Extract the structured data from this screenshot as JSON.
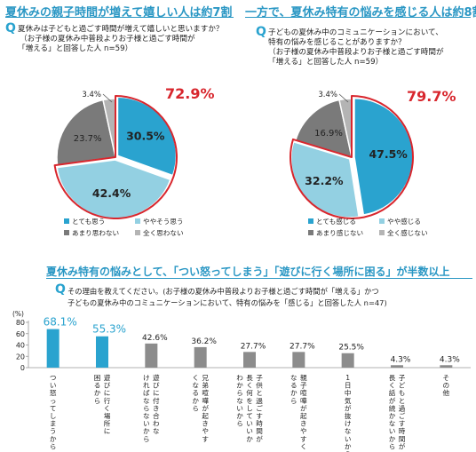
{
  "colors": {
    "very": "#2aa3cf",
    "somewhat": "#93d0e2",
    "notreally": "#7a7a7a",
    "notatall": "#b4b4b4",
    "accent": "#2a97c4",
    "highlight": "#d8262d"
  },
  "left": {
    "header": "夏休みの親子時間が増えて嬉しい人は約7割",
    "q_mark": "Q",
    "q_lines": [
      "夏休みは子どもと過ごす時間が増えて嬉しいと思いますか？",
      "（お子様の夏休み中普段よりお子様と過ごす時間が",
      "「増える」と回答した人  n=59）"
    ],
    "highlight": "72.9%",
    "legend": [
      "とても思う",
      "ややそう思う",
      "あまり思わない",
      "全く思わない"
    ]
  },
  "right": {
    "header": "一方で、夏休み特有の悩みを感じる人は約8割",
    "q_mark": "Q",
    "q_lines": [
      "子どもの夏休み中のコミュニケーションにおいて、",
      "特有の悩みを感じることがありますか？",
      "（お子様の夏休み中普段よりお子様と過ごす時間が",
      "「増える」と回答した人   n=59）"
    ],
    "highlight": "79.7%",
    "legend": [
      "とても感じる",
      "やや感じる",
      "あまり感じない",
      "全く感じない"
    ]
  },
  "bottom": {
    "header": "夏休み特有の悩みとして、「つい怒ってしまう」「遊びに行く場所に困る」が半数以上",
    "q_mark": "Q",
    "q_lines": [
      "その理由を教えてください。(お子様の夏休み中普段よりお子様と過ごす時間が「増える」かつ",
      "子どもの夏休み中のコミュニケーションにおいて、特有の悩みを「感じる」と回答した人 n=47)"
    ]
  },
  "chart_data": [
    {
      "type": "pie",
      "slices": [
        {
          "label": "とても思う",
          "value": 30.5,
          "label_text": "30.5%"
        },
        {
          "label": "ややそう思う",
          "value": 42.4,
          "label_text": "42.4%"
        },
        {
          "label": "あまり思わない",
          "value": 23.7,
          "label_text": "23.7%"
        },
        {
          "label": "全く思わない",
          "value": 3.4,
          "label_text": "3.4%"
        }
      ],
      "legend": "bottom"
    },
    {
      "type": "pie",
      "slices": [
        {
          "label": "とても感じる",
          "value": 47.5,
          "label_text": "47.5%"
        },
        {
          "label": "やや感じる",
          "value": 32.2,
          "label_text": "32.2%"
        },
        {
          "label": "あまり感じない",
          "value": 16.9,
          "label_text": "16.9%"
        },
        {
          "label": "全く感じない",
          "value": 3.4,
          "label_text": "3.4%"
        }
      ],
      "legend": "bottom"
    },
    {
      "type": "bar",
      "ylabel": "(%)",
      "ylim": [
        0,
        80
      ],
      "yticks": [
        0,
        20,
        40,
        60,
        80
      ],
      "grid": false,
      "categories": [
        "つい怒ってしまうから",
        "遊びに行く場所に困るから",
        "遊びに付き合わなければならないから",
        "兄弟喧嘩が起きやすくなるから",
        "子供と過ごす時間が長く何をしていいかわからないから",
        "親子喧嘩が起きやすくなるから",
        "1日中気が抜けないから",
        "子どもと過ごす時間が長く話が続かないから",
        "その他"
      ],
      "label_lines": [
        [
          "つい怒ってしまうから"
        ],
        [
          "遊びに行く場所に",
          "困るから"
        ],
        [
          "遊びに付き合わな",
          "ければならないから"
        ],
        [
          "兄弟喧嘩が起きやす",
          "くなるから"
        ],
        [
          "子供と過ごす時間が",
          "長く何をしていいか",
          "わからないから"
        ],
        [
          "親子喧嘩が起きやすく",
          "なるから"
        ],
        [
          "1日中気が抜けないから"
        ],
        [
          "子どもと過ごす時間が",
          "長く話が続かないから"
        ],
        [
          "その他"
        ]
      ],
      "values": [
        68.1,
        55.3,
        42.6,
        36.2,
        27.7,
        27.7,
        25.5,
        4.3,
        4.3
      ],
      "value_labels": [
        "68.1%",
        "55.3%",
        "42.6%",
        "36.2%",
        "27.7%",
        "27.7%",
        "25.5%",
        "4.3%",
        "4.3%"
      ],
      "highlight_count": 2
    }
  ]
}
